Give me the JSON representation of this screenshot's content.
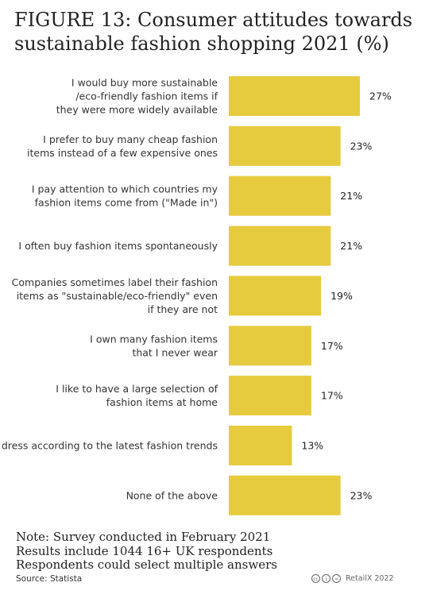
{
  "title_lines": [
    "FIGURE 13: Consumer attitudes towards",
    "sustainable fashion shopping 2021 (%)"
  ],
  "notes": [
    "Note: Survey conducted in February 2021",
    "Results include 1044 16+ UK respondents",
    "Respondents could select multiple answers"
  ],
  "source": "Source: Statista",
  "footer": {
    "license_icons": [
      "cc-icon",
      "by-icon",
      "equals-icon"
    ],
    "brand": "RetailX 2022"
  },
  "colors": {
    "bar": "#E6CB3F",
    "text": "#222222"
  },
  "chart_data": {
    "type": "bar",
    "orientation": "horizontal",
    "title": "FIGURE 13: Consumer attitudes towards sustainable fashion shopping 2021 (%)",
    "categories": [
      [
        "I would buy more sustainable",
        "/eco-friendly fashion items if",
        "they were more widely available"
      ],
      [
        "I prefer to buy many cheap fashion",
        "items instead of a few expensive ones"
      ],
      [
        "I pay attention to which countries my",
        "fashion items come from (\"Made in\")"
      ],
      [
        "I often buy fashion items spontaneously"
      ],
      [
        "Companies sometimes label their fashion",
        "items as \"sustainable/eco-friendly\" even",
        "if they are not"
      ],
      [
        "I own many fashion items",
        "that I never wear"
      ],
      [
        "I like to have a large selection of",
        "fashion items at home"
      ],
      [
        "I dress according to the latest fashion trends"
      ],
      [
        "None of the above"
      ]
    ],
    "values": [
      27,
      23,
      21,
      21,
      19,
      17,
      17,
      13,
      23
    ],
    "value_labels": [
      "27%",
      "23%",
      "21%",
      "21%",
      "19%",
      "17%",
      "17%",
      "13%",
      "23%"
    ],
    "xlim": [
      0,
      27
    ],
    "grid": false,
    "legend": "none"
  }
}
